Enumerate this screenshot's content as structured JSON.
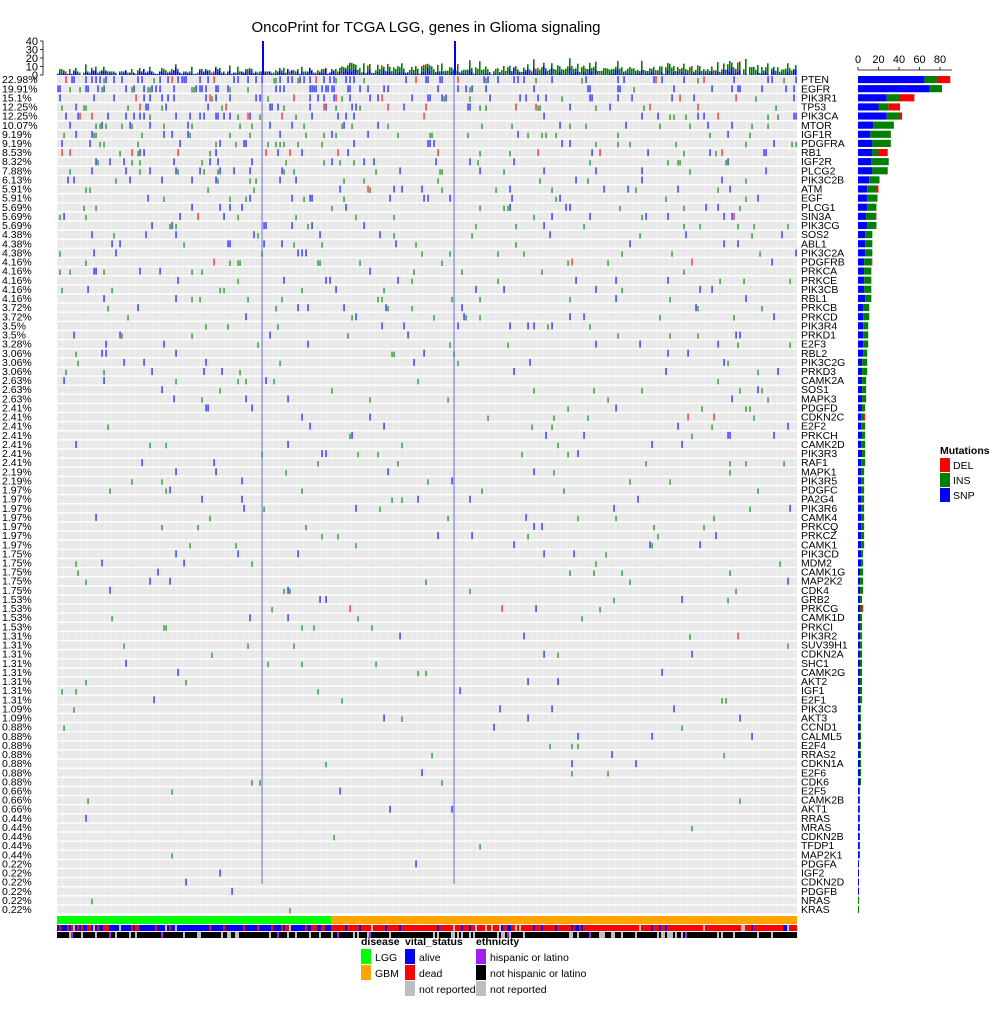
{
  "chart_data": {
    "type": "heatmap",
    "title": "OncoPrint for TCGA LGG, genes in Glioma signaling",
    "top_axis_ticks": [
      "40",
      "30",
      "20",
      "10",
      "0"
    ],
    "top_axis_range": [
      0,
      40
    ],
    "right_axis_ticks": [
      "0",
      "20",
      "40",
      "60",
      "80"
    ],
    "right_axis_range": [
      0,
      80
    ],
    "genes": [
      {
        "name": "PTEN",
        "pct": "22.98%",
        "counts": {
          "SNP": 65,
          "INS": 12,
          "DEL": 13
        }
      },
      {
        "name": "EGFR",
        "pct": "19.91%",
        "counts": {
          "SNP": 70,
          "INS": 12,
          "DEL": 0
        }
      },
      {
        "name": "PIK3R1",
        "pct": "15.1%",
        "counts": {
          "SNP": 28,
          "INS": 12,
          "DEL": 15
        }
      },
      {
        "name": "TP53",
        "pct": "12.25%",
        "counts": {
          "SNP": 20,
          "INS": 10,
          "DEL": 11
        }
      },
      {
        "name": "PIK3CA",
        "pct": "12.25%",
        "counts": {
          "SNP": 28,
          "INS": 12,
          "DEL": 3
        }
      },
      {
        "name": "MTOR",
        "pct": "10.07%",
        "counts": {
          "SNP": 15,
          "INS": 20,
          "DEL": 0
        }
      },
      {
        "name": "IGF1R",
        "pct": "9.19%",
        "counts": {
          "SNP": 12,
          "INS": 20,
          "DEL": 0
        }
      },
      {
        "name": "PDGFRA",
        "pct": "9.19%",
        "counts": {
          "SNP": 14,
          "INS": 18,
          "DEL": 0
        }
      },
      {
        "name": "RB1",
        "pct": "8.53%",
        "counts": {
          "SNP": 14,
          "INS": 6,
          "DEL": 9
        }
      },
      {
        "name": "IGF2R",
        "pct": "8.32%",
        "counts": {
          "SNP": 13,
          "INS": 17,
          "DEL": 0
        }
      },
      {
        "name": "PLCG2",
        "pct": "7.88%",
        "counts": {
          "SNP": 14,
          "INS": 15,
          "DEL": 0
        }
      },
      {
        "name": "PIK3C2B",
        "pct": "6.13%",
        "counts": {
          "SNP": 11,
          "INS": 10,
          "DEL": 0
        }
      },
      {
        "name": "ATM",
        "pct": "5.91%",
        "counts": {
          "SNP": 9,
          "INS": 9,
          "DEL": 2
        }
      },
      {
        "name": "EGF",
        "pct": "5.91%",
        "counts": {
          "SNP": 9,
          "INS": 10,
          "DEL": 0
        }
      },
      {
        "name": "PLCG1",
        "pct": "5.69%",
        "counts": {
          "SNP": 9,
          "INS": 9,
          "DEL": 0
        }
      },
      {
        "name": "SIN3A",
        "pct": "5.69%",
        "counts": {
          "SNP": 8,
          "INS": 9,
          "DEL": 1
        }
      },
      {
        "name": "PIK3CG",
        "pct": "5.69%",
        "counts": {
          "SNP": 9,
          "INS": 9,
          "DEL": 0
        }
      },
      {
        "name": "SOS2",
        "pct": "4.38%",
        "counts": {
          "SNP": 7,
          "INS": 7,
          "DEL": 0
        }
      },
      {
        "name": "ABL1",
        "pct": "4.38%",
        "counts": {
          "SNP": 7,
          "INS": 7,
          "DEL": 0
        }
      },
      {
        "name": "PIK3C2A",
        "pct": "4.38%",
        "counts": {
          "SNP": 7,
          "INS": 7,
          "DEL": 0
        }
      },
      {
        "name": "PDGFRB",
        "pct": "4.16%",
        "counts": {
          "SNP": 6,
          "INS": 7,
          "DEL": 1
        }
      },
      {
        "name": "PRKCA",
        "pct": "4.16%",
        "counts": {
          "SNP": 6,
          "INS": 7,
          "DEL": 0
        }
      },
      {
        "name": "PRKCE",
        "pct": "4.16%",
        "counts": {
          "SNP": 6,
          "INS": 7,
          "DEL": 0
        }
      },
      {
        "name": "PIK3CB",
        "pct": "4.16%",
        "counts": {
          "SNP": 6,
          "INS": 7,
          "DEL": 0
        }
      },
      {
        "name": "RBL1",
        "pct": "4.16%",
        "counts": {
          "SNP": 7,
          "INS": 6,
          "DEL": 0
        }
      },
      {
        "name": "PRKCB",
        "pct": "3.72%",
        "counts": {
          "SNP": 5,
          "INS": 6,
          "DEL": 0
        }
      },
      {
        "name": "PRKCD",
        "pct": "3.72%",
        "counts": {
          "SNP": 5,
          "INS": 6,
          "DEL": 0
        }
      },
      {
        "name": "PIK3R4",
        "pct": "3.5%",
        "counts": {
          "SNP": 5,
          "INS": 5,
          "DEL": 0
        }
      },
      {
        "name": "PRKD1",
        "pct": "3.5%",
        "counts": {
          "SNP": 5,
          "INS": 5,
          "DEL": 0
        }
      },
      {
        "name": "E2F3",
        "pct": "3.28%",
        "counts": {
          "SNP": 5,
          "INS": 5,
          "DEL": 0
        }
      },
      {
        "name": "RBL2",
        "pct": "3.06%",
        "counts": {
          "SNP": 5,
          "INS": 4,
          "DEL": 0
        }
      },
      {
        "name": "PIK3C2G",
        "pct": "3.06%",
        "counts": {
          "SNP": 4,
          "INS": 5,
          "DEL": 0
        }
      },
      {
        "name": "PRKD3",
        "pct": "3.06%",
        "counts": {
          "SNP": 4,
          "INS": 5,
          "DEL": 0
        }
      },
      {
        "name": "CAMK2A",
        "pct": "2.63%",
        "counts": {
          "SNP": 4,
          "INS": 4,
          "DEL": 0
        }
      },
      {
        "name": "SOS1",
        "pct": "2.63%",
        "counts": {
          "SNP": 4,
          "INS": 4,
          "DEL": 0
        }
      },
      {
        "name": "MAPK3",
        "pct": "2.63%",
        "counts": {
          "SNP": 4,
          "INS": 4,
          "DEL": 0
        }
      },
      {
        "name": "PDGFD",
        "pct": "2.41%",
        "counts": {
          "SNP": 4,
          "INS": 3,
          "DEL": 0
        }
      },
      {
        "name": "CDKN2C",
        "pct": "2.41%",
        "counts": {
          "SNP": 3,
          "INS": 3,
          "DEL": 1
        }
      },
      {
        "name": "E2F2",
        "pct": "2.41%",
        "counts": {
          "SNP": 3,
          "INS": 4,
          "DEL": 0
        }
      },
      {
        "name": "PRKCH",
        "pct": "2.41%",
        "counts": {
          "SNP": 4,
          "INS": 3,
          "DEL": 0
        }
      },
      {
        "name": "CAMK2D",
        "pct": "2.41%",
        "counts": {
          "SNP": 3,
          "INS": 4,
          "DEL": 0
        }
      },
      {
        "name": "PIK3R3",
        "pct": "2.41%",
        "counts": {
          "SNP": 4,
          "INS": 3,
          "DEL": 0
        }
      },
      {
        "name": "RAF1",
        "pct": "2.41%",
        "counts": {
          "SNP": 3,
          "INS": 4,
          "DEL": 0
        }
      },
      {
        "name": "MAPK1",
        "pct": "2.19%",
        "counts": {
          "SNP": 3,
          "INS": 3,
          "DEL": 0
        }
      },
      {
        "name": "PIK3R5",
        "pct": "2.19%",
        "counts": {
          "SNP": 3,
          "INS": 3,
          "DEL": 0
        }
      },
      {
        "name": "PDGFC",
        "pct": "1.97%",
        "counts": {
          "SNP": 3,
          "INS": 3,
          "DEL": 0
        }
      },
      {
        "name": "PA2G4",
        "pct": "1.97%",
        "counts": {
          "SNP": 3,
          "INS": 3,
          "DEL": 0
        }
      },
      {
        "name": "PIK3R6",
        "pct": "1.97%",
        "counts": {
          "SNP": 3,
          "INS": 3,
          "DEL": 0
        }
      },
      {
        "name": "CAMK4",
        "pct": "1.97%",
        "counts": {
          "SNP": 3,
          "INS": 3,
          "DEL": 0
        }
      },
      {
        "name": "PRKCQ",
        "pct": "1.97%",
        "counts": {
          "SNP": 3,
          "INS": 3,
          "DEL": 0
        }
      },
      {
        "name": "PRKCZ",
        "pct": "1.97%",
        "counts": {
          "SNP": 3,
          "INS": 3,
          "DEL": 0
        }
      },
      {
        "name": "CAMK1",
        "pct": "1.97%",
        "counts": {
          "SNP": 3,
          "INS": 3,
          "DEL": 0
        }
      },
      {
        "name": "PIK3CD",
        "pct": "1.75%",
        "counts": {
          "SNP": 3,
          "INS": 2,
          "DEL": 0
        }
      },
      {
        "name": "MDM2",
        "pct": "1.75%",
        "counts": {
          "SNP": 3,
          "INS": 2,
          "DEL": 0
        }
      },
      {
        "name": "CAMK1G",
        "pct": "1.75%",
        "counts": {
          "SNP": 2,
          "INS": 3,
          "DEL": 0
        }
      },
      {
        "name": "MAP2K2",
        "pct": "1.75%",
        "counts": {
          "SNP": 2,
          "INS": 3,
          "DEL": 0
        }
      },
      {
        "name": "CDK4",
        "pct": "1.75%",
        "counts": {
          "SNP": 2,
          "INS": 3,
          "DEL": 0
        }
      },
      {
        "name": "GRB2",
        "pct": "1.53%",
        "counts": {
          "SNP": 2,
          "INS": 2,
          "DEL": 0
        }
      },
      {
        "name": "PRKCG",
        "pct": "1.53%",
        "counts": {
          "SNP": 2,
          "INS": 2,
          "DEL": 1
        }
      },
      {
        "name": "CAMK1D",
        "pct": "1.53%",
        "counts": {
          "SNP": 2,
          "INS": 2,
          "DEL": 0
        }
      },
      {
        "name": "PRKCI",
        "pct": "1.53%",
        "counts": {
          "SNP": 2,
          "INS": 2,
          "DEL": 0
        }
      },
      {
        "name": "PIK3R2",
        "pct": "1.31%",
        "counts": {
          "SNP": 2,
          "INS": 1,
          "DEL": 1
        }
      },
      {
        "name": "SUV39H1",
        "pct": "1.31%",
        "counts": {
          "SNP": 2,
          "INS": 2,
          "DEL": 0
        }
      },
      {
        "name": "CDKN2A",
        "pct": "1.31%",
        "counts": {
          "SNP": 2,
          "INS": 2,
          "DEL": 0
        }
      },
      {
        "name": "SHC1",
        "pct": "1.31%",
        "counts": {
          "SNP": 2,
          "INS": 2,
          "DEL": 0
        }
      },
      {
        "name": "CAMK2G",
        "pct": "1.31%",
        "counts": {
          "SNP": 2,
          "INS": 2,
          "DEL": 0
        }
      },
      {
        "name": "AKT2",
        "pct": "1.31%",
        "counts": {
          "SNP": 2,
          "INS": 2,
          "DEL": 0
        }
      },
      {
        "name": "IGF1",
        "pct": "1.31%",
        "counts": {
          "SNP": 2,
          "INS": 2,
          "DEL": 0
        }
      },
      {
        "name": "E2F1",
        "pct": "1.31%",
        "counts": {
          "SNP": 2,
          "INS": 2,
          "DEL": 0
        }
      },
      {
        "name": "PIK3C3",
        "pct": "1.09%",
        "counts": {
          "SNP": 2,
          "INS": 1,
          "DEL": 0
        }
      },
      {
        "name": "AKT3",
        "pct": "1.09%",
        "counts": {
          "SNP": 2,
          "INS": 1,
          "DEL": 0
        }
      },
      {
        "name": "CCND1",
        "pct": "0.88%",
        "counts": {
          "SNP": 2,
          "INS": 1,
          "DEL": 0
        }
      },
      {
        "name": "CALML5",
        "pct": "0.88%",
        "counts": {
          "SNP": 2,
          "INS": 1,
          "DEL": 0
        }
      },
      {
        "name": "E2F4",
        "pct": "0.88%",
        "counts": {
          "SNP": 2,
          "INS": 1,
          "DEL": 0
        }
      },
      {
        "name": "RRAS2",
        "pct": "0.88%",
        "counts": {
          "SNP": 2,
          "INS": 1,
          "DEL": 0
        }
      },
      {
        "name": "CDKN1A",
        "pct": "0.88%",
        "counts": {
          "SNP": 2,
          "INS": 1,
          "DEL": 0
        }
      },
      {
        "name": "E2F6",
        "pct": "0.88%",
        "counts": {
          "SNP": 2,
          "INS": 1,
          "DEL": 0
        }
      },
      {
        "name": "CDK6",
        "pct": "0.88%",
        "counts": {
          "SNP": 2,
          "INS": 1,
          "DEL": 0
        }
      },
      {
        "name": "E2F5",
        "pct": "0.66%",
        "counts": {
          "SNP": 1,
          "INS": 1,
          "DEL": 0
        }
      },
      {
        "name": "CAMK2B",
        "pct": "0.66%",
        "counts": {
          "SNP": 1,
          "INS": 1,
          "DEL": 0
        }
      },
      {
        "name": "AKT1",
        "pct": "0.66%",
        "counts": {
          "SNP": 1,
          "INS": 1,
          "DEL": 0
        }
      },
      {
        "name": "RRAS",
        "pct": "0.44%",
        "counts": {
          "SNP": 1,
          "INS": 1,
          "DEL": 0
        }
      },
      {
        "name": "MRAS",
        "pct": "0.44%",
        "counts": {
          "SNP": 1,
          "INS": 1,
          "DEL": 0
        }
      },
      {
        "name": "CDKN2B",
        "pct": "0.44%",
        "counts": {
          "SNP": 1,
          "INS": 1,
          "DEL": 0
        }
      },
      {
        "name": "TFDP1",
        "pct": "0.44%",
        "counts": {
          "SNP": 1,
          "INS": 1,
          "DEL": 0
        }
      },
      {
        "name": "MAP2K1",
        "pct": "0.44%",
        "counts": {
          "SNP": 1,
          "INS": 1,
          "DEL": 0
        }
      },
      {
        "name": "PDGFA",
        "pct": "0.22%",
        "counts": {
          "SNP": 1,
          "INS": 0,
          "DEL": 0
        }
      },
      {
        "name": "IGF2",
        "pct": "0.22%",
        "counts": {
          "SNP": 1,
          "INS": 0,
          "DEL": 0
        }
      },
      {
        "name": "CDKN2D",
        "pct": "0.22%",
        "counts": {
          "SNP": 1,
          "INS": 0,
          "DEL": 0
        }
      },
      {
        "name": "PDGFB",
        "pct": "0.22%",
        "counts": {
          "SNP": 1,
          "INS": 0,
          "DEL": 0
        }
      },
      {
        "name": "NRAS",
        "pct": "0.22%",
        "counts": {
          "SNP": 0,
          "INS": 1,
          "DEL": 0
        }
      },
      {
        "name": "KRAS",
        "pct": "0.22%",
        "counts": {
          "SNP": 0,
          "INS": 1,
          "DEL": 0
        }
      }
    ],
    "mutation_legend": {
      "title": "Mutations",
      "items": [
        {
          "label": "DEL",
          "color": "#ff0000"
        },
        {
          "label": "INS",
          "color": "#008000"
        },
        {
          "label": "SNP",
          "color": "#0000ff"
        }
      ]
    },
    "annotation_legend": {
      "disease": {
        "title": "disease",
        "items": [
          {
            "label": "LGG",
            "color": "#00ff00"
          },
          {
            "label": "GBM",
            "color": "#ffa500"
          }
        ]
      },
      "vital_status": {
        "title": "vital_status",
        "items": [
          {
            "label": "alive",
            "color": "#0000ff"
          },
          {
            "label": "dead",
            "color": "#ff0000"
          },
          {
            "label": "not reported",
            "color": "#bebebe"
          }
        ]
      },
      "ethnicity": {
        "title": "ethnicity",
        "items": [
          {
            "label": "hispanic or latino",
            "color": "#a020f0"
          },
          {
            "label": "not hispanic or latino",
            "color": "#000000"
          },
          {
            "label": "not reported",
            "color": "#bebebe"
          }
        ]
      }
    },
    "colors": {
      "background_cell": "#e8e8e8",
      "DEL": "#ff0000",
      "INS": "#008000",
      "SNP": "#0000ff"
    }
  }
}
